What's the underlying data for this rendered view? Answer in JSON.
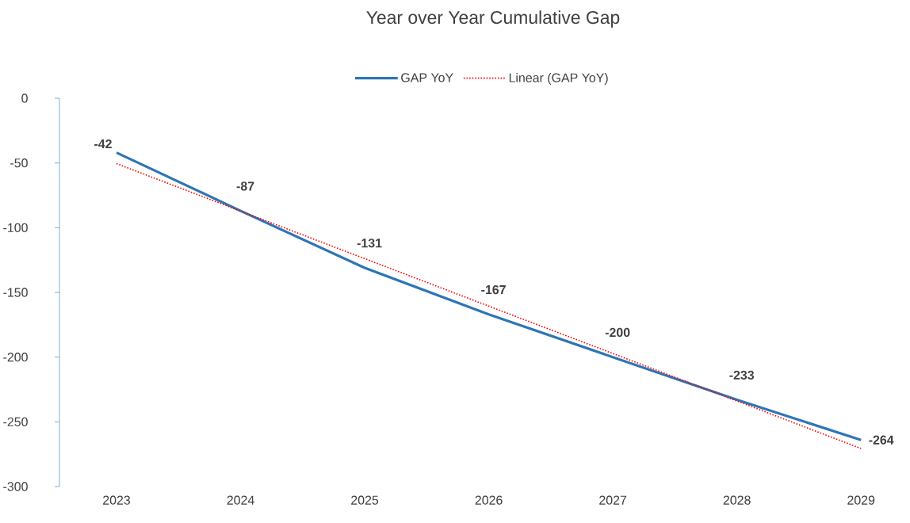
{
  "chart_data": {
    "type": "line",
    "title": "Year over Year Cumulative Gap",
    "categories": [
      "2023",
      "2024",
      "2025",
      "2026",
      "2027",
      "2028",
      "2029"
    ],
    "series": [
      {
        "name": "GAP YoY",
        "color": "#2e75b6",
        "values": [
          -42,
          -87,
          -131,
          -167,
          -200,
          -233,
          -264
        ],
        "value_labels": [
          "-42",
          "-87",
          "-131",
          "-167",
          "-200",
          "-233",
          "-264"
        ],
        "line_style": "solid"
      },
      {
        "name": "Linear (GAP YoY)",
        "color": "#ff0000",
        "values": [
          -50.5,
          -87.2,
          -123.9,
          -160.6,
          -197.2,
          -233.9,
          -270.6
        ],
        "line_style": "dotted"
      }
    ],
    "ylim": [
      -300,
      0
    ],
    "yticks": [
      -300,
      -250,
      -200,
      -150,
      -100,
      -50,
      0
    ],
    "grid": false,
    "legend": "top",
    "marker": "none"
  }
}
